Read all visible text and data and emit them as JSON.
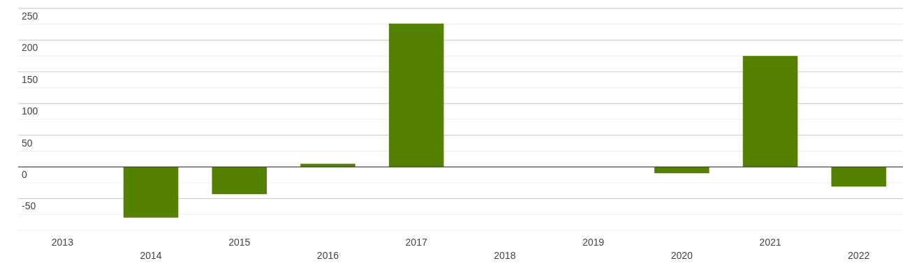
{
  "chart_data": {
    "type": "bar",
    "categories": [
      "2013",
      "2014",
      "2015",
      "2016",
      "2017",
      "2018",
      "2019",
      "2020",
      "2021",
      "2022"
    ],
    "values": [
      null,
      -80,
      -43,
      5,
      226,
      null,
      null,
      -10,
      175,
      -31
    ],
    "color": "#548200",
    "ylim": [
      -100,
      250
    ],
    "yticks": [
      {
        "value": -100,
        "label": null
      },
      {
        "value": -75,
        "label": null
      },
      -50,
      {
        "value": -25,
        "label": null
      },
      0,
      {
        "value": 25,
        "label": null
      },
      50,
      {
        "value": 75,
        "label": null
      },
      100,
      {
        "value": 125,
        "label": null
      },
      150,
      {
        "value": 175,
        "label": null
      },
      200,
      {
        "value": 225,
        "label": null
      },
      250
    ],
    "grid": true
  }
}
